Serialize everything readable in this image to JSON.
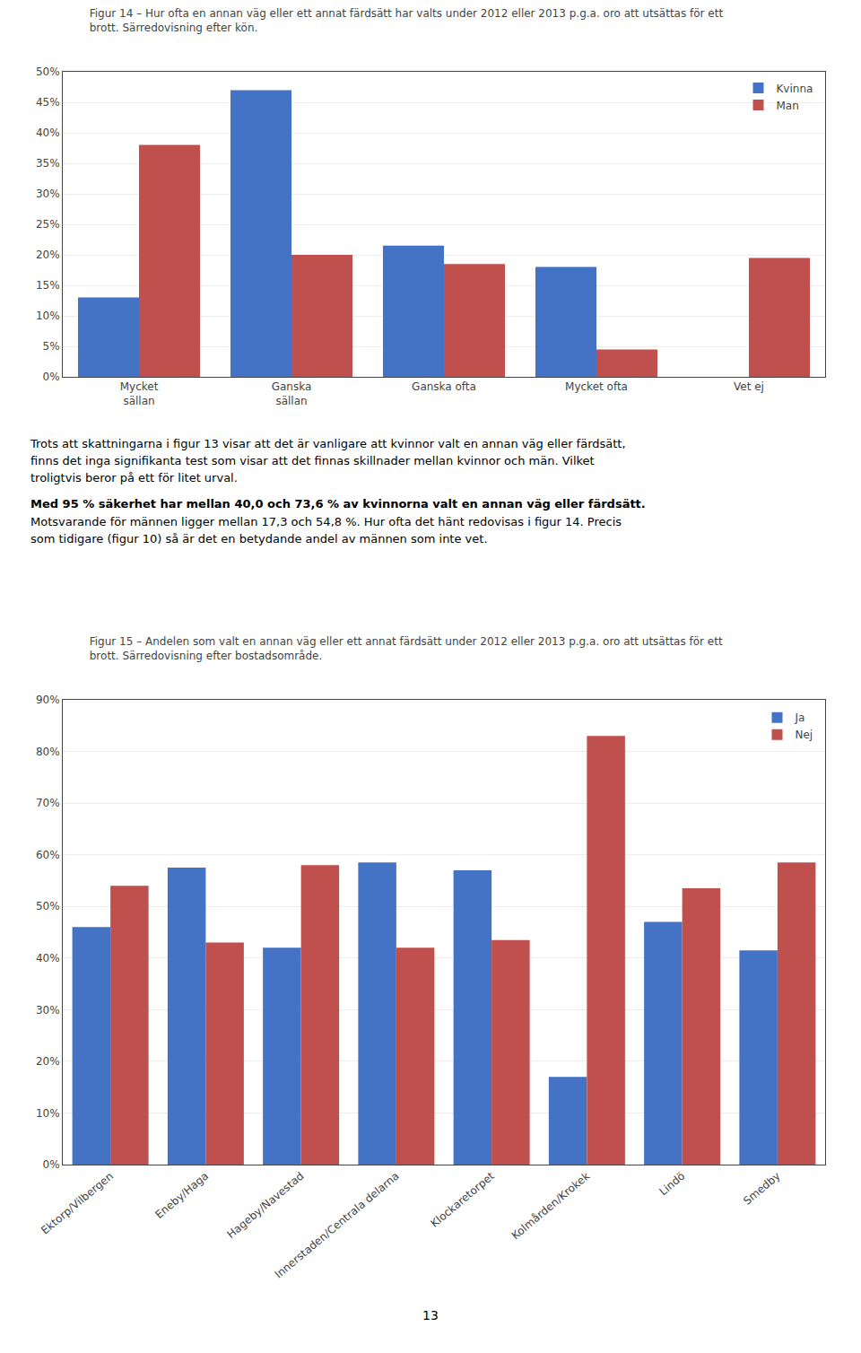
{
  "chart_data": [
    {
      "type": "bar",
      "title": "Figur 14 – Hur ofta en annan väg eller ett annat färdsätt har valts under 2012 eller 2013 p.g.a. oro att utsättas för ett\nbrott. Särredovisning efter kön.",
      "categories": [
        "Mycket\nsällan",
        "Ganska\nsällan",
        "Ganska ofta",
        "Mycket ofta",
        "Vet ej"
      ],
      "series": [
        {
          "name": "Kvinna",
          "color": "#4472C4",
          "values": [
            13,
            47,
            21.5,
            18,
            0
          ]
        },
        {
          "name": "Man",
          "color": "#C0504D",
          "values": [
            38,
            20,
            18.5,
            4.5,
            19.5
          ]
        }
      ],
      "ylim": [
        0,
        50
      ],
      "yticks": [
        {
          "value": 0,
          "label": "0%"
        },
        {
          "value": 5,
          "label": "5%"
        },
        {
          "value": 10,
          "label": "10%"
        },
        {
          "value": 15,
          "label": "15%"
        },
        {
          "value": 20,
          "label": "20%"
        },
        {
          "value": 25,
          "label": "25%"
        },
        {
          "value": 30,
          "label": "30%"
        },
        {
          "value": 35,
          "label": "35%"
        },
        {
          "value": 40,
          "label": "40%"
        },
        {
          "value": 45,
          "label": "45%"
        },
        {
          "value": 50,
          "label": "50%"
        }
      ],
      "grid": true,
      "legend": "upper right"
    },
    {
      "type": "bar",
      "title": "Figur 15 – Andelen som valt en annan väg eller ett annat färdsätt under 2012 eller 2013 p.g.a. oro att utsättas för ett\nbrott. Särredovisning efter bostadsområde.",
      "categories": [
        "Ektorp/Vilbergen",
        "Eneby/Haga",
        "Hageby/Navestad",
        "Innerstaden/Centrala delarna",
        "Klockaretorpet",
        "Kolmården/Krokek",
        "Lindö",
        "Smedby"
      ],
      "series": [
        {
          "name": "Ja",
          "color": "#4472C4",
          "values": [
            46,
            57.5,
            42,
            58.5,
            57,
            17,
            47,
            41.5
          ]
        },
        {
          "name": "Nej",
          "color": "#C0504D",
          "values": [
            54,
            43,
            58,
            42,
            43.5,
            83,
            53.5,
            58.5
          ]
        }
      ],
      "ylim": [
        0,
        90
      ],
      "yticks": [
        {
          "value": 0,
          "label": "0%"
        },
        {
          "value": 10,
          "label": "10%"
        },
        {
          "value": 20,
          "label": "20%"
        },
        {
          "value": 30,
          "label": "30%"
        },
        {
          "value": 40,
          "label": "40%"
        },
        {
          "value": 50,
          "label": "50%"
        },
        {
          "value": 60,
          "label": "60%"
        },
        {
          "value": 70,
          "label": "70%"
        },
        {
          "value": 80,
          "label": "80%"
        },
        {
          "value": 90,
          "label": "90%"
        }
      ],
      "grid": true,
      "legend": "upper right"
    }
  ],
  "body": [
    "Trots att skattningarna i figur 13 visar att det är vanligare att kvinnor valt en annan väg eller färdsätt,\nfinns det inga signifikanta test som visar att det finnas skillnader mellan kvinnor och män. Vilket\ntroligtvis beror på ett för litet urval.",
    "Med 95 % säkerhet har mellan 40,0 och 73,6 % av kvinnorna valt en annan väg eller färdsätt.",
    "Motsvarande för männen ligger mellan 17,3 och 54,8 %. Hur ofta det hänt redovisas i figur 14. Precis\nsom tidigare (figur 10) så är det en betydande andel av männen som inte vet."
  ],
  "page_number": "13"
}
